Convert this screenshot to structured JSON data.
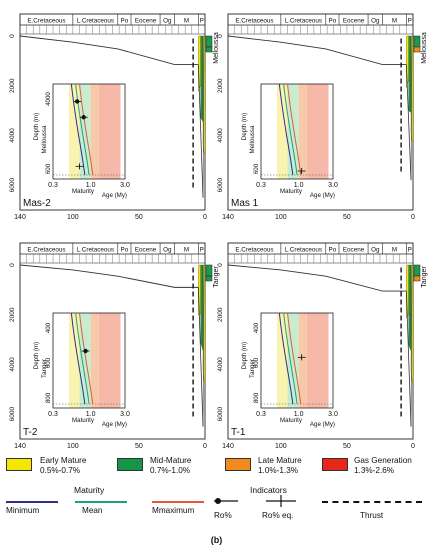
{
  "chart_data": {
    "type": "line",
    "figure_label": "(b)",
    "time_axis": {
      "unit": "My",
      "ticks": [
        140,
        100,
        50,
        0
      ],
      "range": [
        140,
        0
      ],
      "periods": [
        "E.Cretaceous",
        "L.Cretaceous",
        "Po",
        "Eocene",
        "Og",
        "M",
        "P"
      ],
      "period_boundaries": [
        140,
        100,
        66,
        56,
        34,
        23,
        5,
        0
      ]
    },
    "depth_axis": {
      "ticks": [
        0,
        2000,
        4000,
        6000
      ]
    },
    "inset": {
      "ylabel": "Depth (m)",
      "xlabel": "Maturity",
      "x_axis_label": "Age (My)",
      "x_scale": "log",
      "x_ticks": [
        "0.3",
        "1.0",
        "3.0"
      ],
      "x_range": [
        0.3,
        3.0
      ]
    },
    "maturity_zones": [
      {
        "name": "Early Mature",
        "range": "0.5%-0.7%",
        "ro_min": 0.5,
        "ro_max": 0.7,
        "color": "#f5e700"
      },
      {
        "name": "Mid-Mature",
        "range": "0.7%-1.0%",
        "ro_min": 0.7,
        "ro_max": 1.0,
        "color": "#169447"
      },
      {
        "name": "Late Mature",
        "range": "1.0%-1.3%",
        "ro_min": 1.0,
        "ro_max": 1.3,
        "color": "#f28a1e"
      },
      {
        "name": "Gas Generation",
        "range": "1.3%-2.6%",
        "ro_min": 1.3,
        "ro_max": 2.6,
        "color": "#e8261c"
      }
    ],
    "maturity_lines": {
      "header": "Maturity",
      "items": [
        {
          "name": "Minimum",
          "color": "#2b2f8f"
        },
        {
          "name": "Mean",
          "color": "#1aa37a"
        },
        {
          "name": "Mmaximum",
          "color": "#e05a3a"
        }
      ]
    },
    "indicators": {
      "header": "Indicators",
      "items": [
        "Ro%",
        "Ro% eq."
      ]
    },
    "thrust_label": "Thrust",
    "panels": [
      {
        "well": "Mas-2",
        "formation": "Melloussa",
        "inset_depth_ticks": [
          "4000",
          "600"
        ],
        "burial": [
          {
            "age": 140,
            "depth": 0
          },
          {
            "age": 100,
            "depth": 250
          },
          {
            "age": 66,
            "depth": 520
          },
          {
            "age": 23,
            "depth": 1150
          },
          {
            "age": 5,
            "depth": 1150
          }
        ],
        "final_depth": 6500,
        "ro_points": [
          {
            "ro": 0.65,
            "depth": 3550,
            "kind": "Ro%"
          },
          {
            "ro": 0.8,
            "depth": 4050,
            "kind": "Ro%"
          },
          {
            "ro": 0.7,
            "depth": 5600,
            "kind": "Ro% eq."
          }
        ]
      },
      {
        "well": "Mas 1",
        "formation": "Melloussa",
        "inset_depth_ticks": [
          "600"
        ],
        "burial": [
          {
            "age": 140,
            "depth": 0
          },
          {
            "age": 100,
            "depth": 250
          },
          {
            "age": 66,
            "depth": 520
          },
          {
            "age": 23,
            "depth": 1150
          },
          {
            "age": 5,
            "depth": 1150
          }
        ],
        "final_depth": 5800,
        "ro_points": [
          {
            "ro": 1.1,
            "depth": 5750,
            "kind": "Ro% eq."
          }
        ]
      },
      {
        "well": "T-2",
        "formation": "Tanger",
        "inset_depth_ticks": [
          "400",
          "600",
          "800"
        ],
        "burial": [
          {
            "age": 140,
            "depth": 0
          },
          {
            "age": 100,
            "depth": 200
          },
          {
            "age": 66,
            "depth": 450
          },
          {
            "age": 23,
            "depth": 900
          },
          {
            "age": 5,
            "depth": 900
          }
        ],
        "final_depth": 6500,
        "ro_points": [
          {
            "ro": 0.85,
            "depth": 4200,
            "kind": "Ro%"
          }
        ]
      },
      {
        "well": "T-1",
        "formation": "Tanger",
        "inset_depth_ticks": [
          "400",
          "600",
          "800"
        ],
        "burial": [
          {
            "age": 140,
            "depth": 0
          },
          {
            "age": 100,
            "depth": 200
          },
          {
            "age": 66,
            "depth": 450
          },
          {
            "age": 23,
            "depth": 1050
          },
          {
            "age": 5,
            "depth": 1050
          }
        ],
        "final_depth": 6500,
        "ro_points": [
          {
            "ro": 1.1,
            "depth": 4400,
            "kind": "Ro% eq."
          }
        ]
      }
    ]
  }
}
